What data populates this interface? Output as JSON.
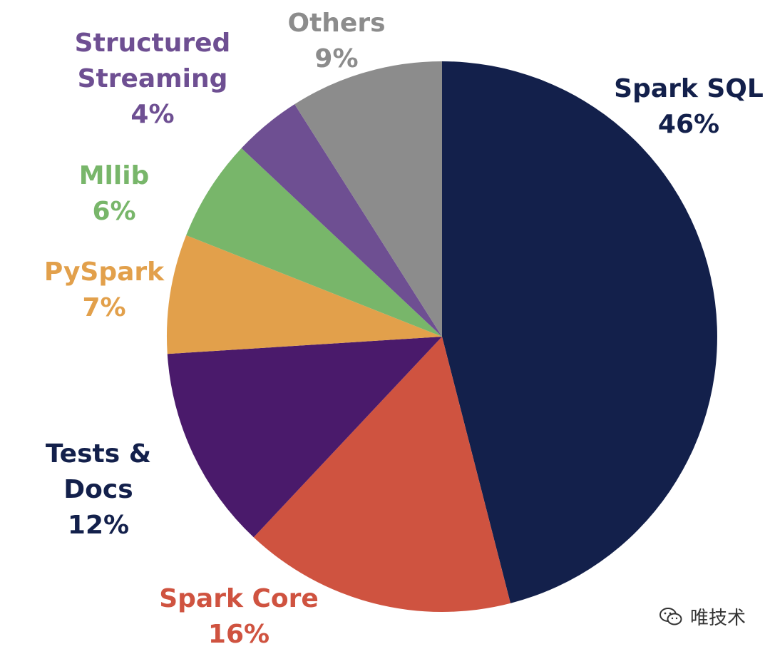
{
  "chart_data": {
    "type": "pie",
    "start_angle_deg": 0,
    "direction": "clockwise",
    "slices": [
      {
        "label_lines": [
          "Spark SQL"
        ],
        "value_label": "46%",
        "value": 46,
        "color": "#13204b",
        "label_color": "#13204b"
      },
      {
        "label_lines": [
          "Spark Core"
        ],
        "value_label": "16%",
        "value": 16,
        "color": "#cf5340",
        "label_color": "#cf5340"
      },
      {
        "label_lines": [
          "Tests &",
          "Docs"
        ],
        "value_label": "12%",
        "value": 12,
        "color": "#4a1a6b",
        "label_color": "#13204b"
      },
      {
        "label_lines": [
          "PySpark"
        ],
        "value_label": "7%",
        "value": 7,
        "color": "#e2a04b",
        "label_color": "#e2a04b"
      },
      {
        "label_lines": [
          "Mllib"
        ],
        "value_label": "6%",
        "value": 6,
        "color": "#78b66a",
        "label_color": "#78b66a"
      },
      {
        "label_lines": [
          "Structured",
          "Streaming"
        ],
        "value_label": "4%",
        "value": 4,
        "color": "#6e4f92",
        "label_color": "#6e4f92"
      },
      {
        "label_lines": [
          "Others"
        ],
        "value_label": "9%",
        "value": 9,
        "color": "#8c8c8c",
        "label_color": "#8c8c8c"
      }
    ]
  },
  "watermark": {
    "text": "唯技术",
    "icon": "wechat-icon"
  }
}
